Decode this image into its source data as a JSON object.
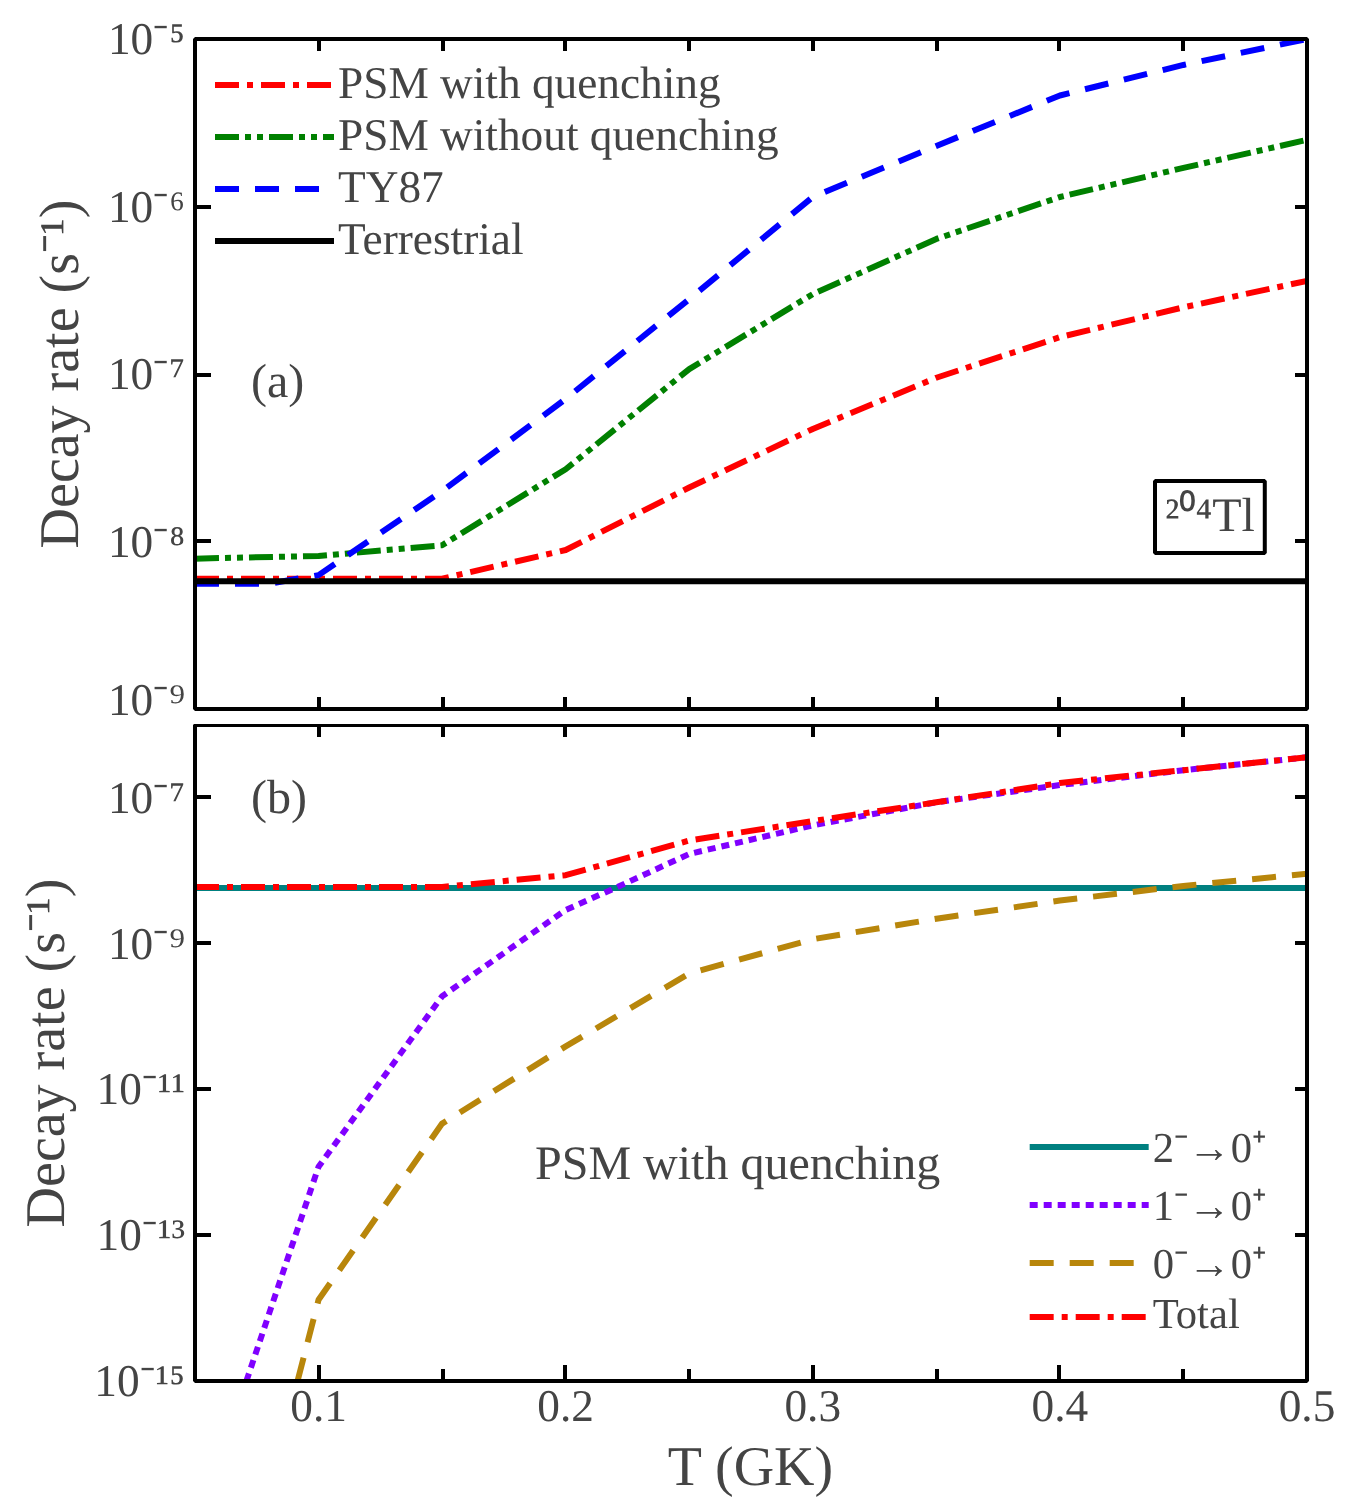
{
  "chart_data": [
    {
      "type": "line",
      "ylabel": "Decay rate (s⁻¹)",
      "annotations": [
        "(a)",
        "²⁰⁴Tl"
      ],
      "log": "y",
      "grid": false,
      "legend": "top left",
      "tick_labels": "y",
      "xlim": [
        0.05,
        0.5
      ],
      "xticks": [
        {
          "value": 0.1,
          "label": null
        },
        {
          "value": 0.15,
          "label": null
        },
        {
          "value": 0.2,
          "label": null
        },
        {
          "value": 0.25,
          "label": null
        },
        {
          "value": 0.3,
          "label": null
        },
        {
          "value": 0.35,
          "label": null
        },
        {
          "value": 0.4,
          "label": null
        },
        {
          "value": 0.45,
          "label": null
        }
      ],
      "ylim": [
        1e-09,
        1e-05
      ],
      "yticks": [
        {
          "value": 1e-09,
          "label": "10⁻⁹"
        },
        {
          "value": 1e-08,
          "label": "10⁻⁸"
        },
        {
          "value": 1e-07,
          "label": "10⁻⁷"
        },
        {
          "value": 1e-06,
          "label": "10⁻⁶"
        },
        {
          "value": 1e-05,
          "label": "10⁻⁵"
        }
      ],
      "x": [
        0.05,
        0.1,
        0.15,
        0.2,
        0.25,
        0.3,
        0.35,
        0.4,
        0.45,
        0.5
      ],
      "series": [
        {
          "name": "PSM with quenching",
          "color": "#ff0000",
          "line_style": "dashdot",
          "values": [
            6e-09,
            6e-09,
            6e-09,
            8.9e-09,
            2.1e-08,
            4.7e-08,
            9.5e-08,
            1.66e-07,
            2.5e-07,
            3.6e-07
          ]
        },
        {
          "name": "PSM without quenching",
          "color": "#008000",
          "line_style": "dashdotdot",
          "values": [
            7.9e-09,
            8.2e-09,
            9.5e-09,
            2.7e-08,
            1.07e-07,
            3e-07,
            6.4e-07,
            1.14e-06,
            1.7e-06,
            2.5e-06
          ]
        },
        {
          "name": "TY87",
          "color": "#0000ff",
          "line_style": "dashed",
          "x": [
            0.05,
            0.08,
            0.1,
            0.15,
            0.2,
            0.25,
            0.3,
            0.35,
            0.4,
            0.45,
            0.5
          ],
          "values": [
            5.6e-09,
            5.6e-09,
            6.3e-09,
            2e-08,
            7.1e-08,
            2.8e-07,
            1.14e-06,
            2.3e-06,
            4.6e-06,
            7e-06,
            1e-05
          ]
        },
        {
          "name": "Terrestrial",
          "color": "#000000",
          "line_style": "solid",
          "x": [
            0.05,
            0.5
          ],
          "values": [
            5.8e-09,
            5.8e-09
          ]
        }
      ]
    },
    {
      "type": "line",
      "xlabel": "T (GK)",
      "ylabel": "Decay rate (s⁻¹)",
      "annotations": [
        "(b)",
        "PSM with quenching"
      ],
      "log": "y",
      "grid": false,
      "legend": "bottom right",
      "xlim": [
        0.05,
        0.5
      ],
      "xticks": [
        0.1,
        {
          "value": 0.15,
          "label": null
        },
        0.2,
        {
          "value": 0.25,
          "label": null
        },
        0.3,
        {
          "value": 0.35,
          "label": null
        },
        0.4,
        {
          "value": 0.45,
          "label": null
        },
        0.5
      ],
      "ylim": [
        1e-15,
        1e-06
      ],
      "yticks": [
        {
          "value": 1e-15,
          "label": "10⁻¹⁵"
        },
        {
          "value": 1e-13,
          "label": "10⁻¹³"
        },
        {
          "value": 1e-11,
          "label": "10⁻¹¹"
        },
        {
          "value": 1e-09,
          "label": "10⁻⁹"
        },
        {
          "value": 1e-07,
          "label": "10⁻⁷"
        }
      ],
      "x": [
        0.05,
        0.1,
        0.15,
        0.2,
        0.25,
        0.3,
        0.35,
        0.4,
        0.45,
        0.5
      ],
      "series": [
        {
          "name": "2⁻→0⁺",
          "color": "#008080",
          "line_style": "solid",
          "x": [
            0.05,
            0.5
          ],
          "values": [
            5.8e-09,
            5.8e-09
          ]
        },
        {
          "name": "1⁻→0⁺",
          "color": "#8000ff",
          "line_style": "dotted",
          "x": [
            0.0708,
            0.1,
            0.15,
            0.2,
            0.22,
            0.25,
            0.3,
            0.35,
            0.4,
            0.45,
            0.5
          ],
          "values": [
            1e-15,
            8.7e-13,
            1.9e-10,
            2.9e-09,
            5.8e-09,
            1.7e-08,
            4.2e-08,
            8.7e-08,
            1.5e-07,
            2.4e-07,
            3.6e-07
          ]
        },
        {
          "name": "0⁻→0⁺",
          "color": "#b8860b",
          "line_style": "dashed",
          "x": [
            0.0915,
            0.1,
            0.15,
            0.2,
            0.25,
            0.3,
            0.35,
            0.4,
            0.45,
            0.5
          ],
          "values": [
            1e-15,
            1.3e-14,
            3.4e-12,
            3.9e-11,
            3.9e-10,
            1.15e-09,
            2.2e-09,
            3.9e-09,
            6.2e-09,
            9.1e-09
          ]
        },
        {
          "name": "Total",
          "color": "#ff0000",
          "line_style": "dashdot",
          "values": [
            6e-09,
            6e-09,
            6e-09,
            8.7e-09,
            2.6e-08,
            4.8e-08,
            8.7e-08,
            1.6e-07,
            2.4e-07,
            3.6e-07
          ]
        }
      ]
    }
  ]
}
